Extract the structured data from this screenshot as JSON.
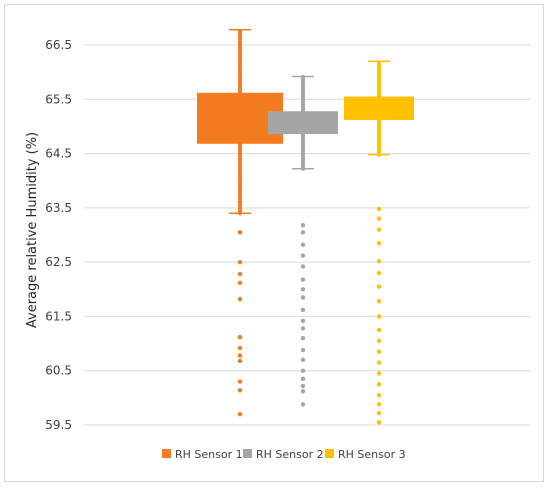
{
  "chart_data": {
    "type": "box",
    "title": "",
    "xlabel": "",
    "ylabel": "Average relative Humidity (%)",
    "ylim": [
      59.5,
      66.5
    ],
    "yticks": [
      "59.5",
      "60.5",
      "61.5",
      "62.5",
      "63.5",
      "64.5",
      "65.5",
      "66.5"
    ],
    "grid": true,
    "legend_position": "bottom",
    "series": [
      {
        "name": "RH Sensor 1",
        "color": "#f47c20",
        "min": 63.4,
        "q1": 64.68,
        "q3": 65.62,
        "max": 66.78,
        "outliers": [
          63.05,
          62.5,
          62.28,
          62.12,
          61.82,
          61.12,
          60.92,
          60.78,
          60.68,
          60.3,
          60.14,
          59.7
        ]
      },
      {
        "name": "RH Sensor 2",
        "color": "#a5a5a5",
        "min": 64.22,
        "q1": 64.86,
        "q3": 65.28,
        "max": 65.92,
        "outliers": [
          63.18,
          63.05,
          62.82,
          62.62,
          62.42,
          62.18,
          62.0,
          61.85,
          61.62,
          61.42,
          61.28,
          61.1,
          60.88,
          60.7,
          60.5,
          60.35,
          60.22,
          60.12,
          59.88
        ]
      },
      {
        "name": "RH Sensor 3",
        "color": "#ffc000",
        "min": 64.48,
        "q1": 65.12,
        "q3": 65.55,
        "max": 66.2,
        "outliers": [
          63.48,
          63.3,
          63.1,
          62.85,
          62.52,
          62.3,
          62.05,
          61.78,
          61.5,
          61.25,
          61.05,
          60.85,
          60.65,
          60.45,
          60.25,
          60.05,
          59.88,
          59.72,
          59.55
        ]
      }
    ]
  }
}
